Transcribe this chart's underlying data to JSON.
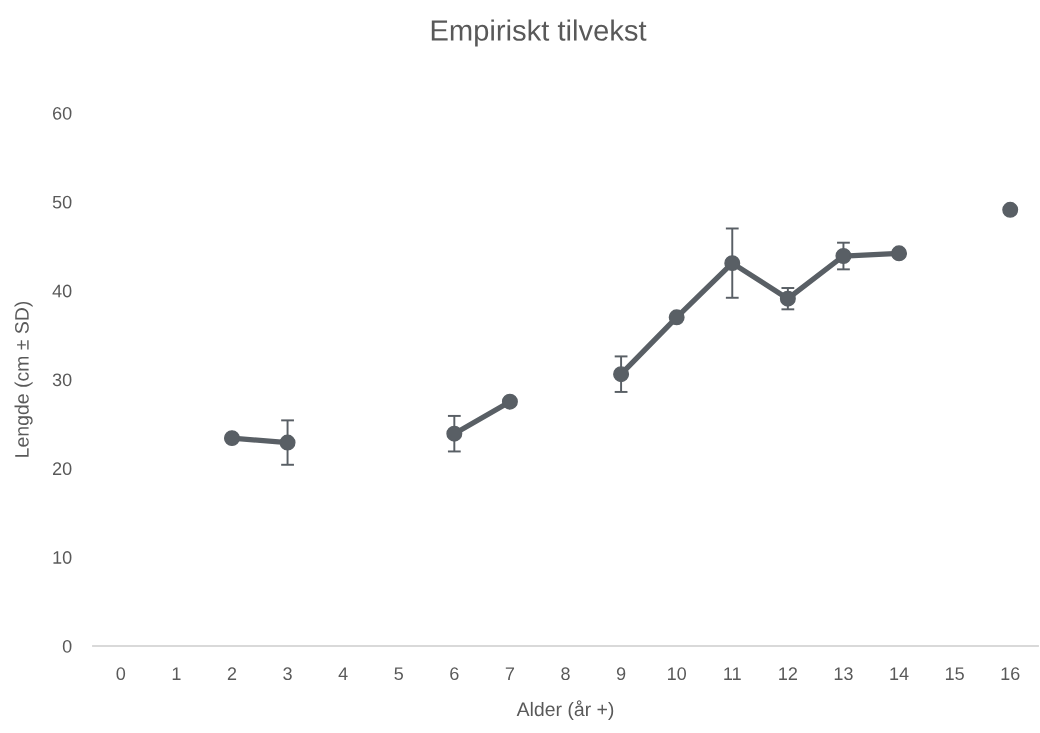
{
  "chart_data": {
    "type": "line",
    "title": "Empiriskt tilvekst",
    "xlabel": "Alder (år +)",
    "ylabel": "Lengde (cm ± SD)",
    "categories": [
      "0",
      "1",
      "2",
      "3",
      "4",
      "5",
      "6",
      "7",
      "8",
      "9",
      "10",
      "11",
      "12",
      "13",
      "14",
      "15",
      "16"
    ],
    "series": [
      {
        "color": "#595f65",
        "values": [
          null,
          null,
          23.4,
          22.9,
          null,
          null,
          23.9,
          27.5,
          null,
          30.6,
          37.0,
          43.1,
          39.1,
          43.9,
          44.2,
          null,
          49.1
        ],
        "errors": [
          null,
          null,
          null,
          2.5,
          null,
          null,
          2.0,
          null,
          null,
          2.0,
          null,
          3.9,
          1.2,
          1.5,
          null,
          null,
          null
        ]
      }
    ],
    "ylim": [
      0,
      60
    ],
    "yticks": [
      0,
      10,
      20,
      30,
      40,
      50,
      60
    ],
    "marker": "circle",
    "line_style": "solid"
  }
}
